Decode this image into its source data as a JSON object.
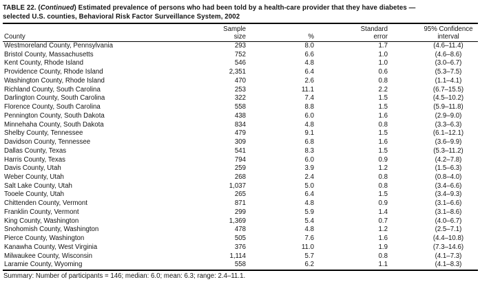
{
  "document": {
    "title": {
      "line1_prefix": "TABLE 22. (",
      "line1_italic": "Continued",
      "line1_suffix": ") Estimated prevalence of persons who had been told by a health-care provider that they have diabetes —",
      "line2": "selected U.S. counties, Behavioral Risk Factor Surveillance System, 2002"
    },
    "summary": "Summary: Number of participants = 146; median: 6.0; mean: 6.3; range: 2.4–11.1."
  },
  "table": {
    "columns": {
      "county": "County",
      "sample": "Sample\nsize",
      "pct": "%",
      "se": "Standard\nerror",
      "ci": "95% Confidence\ninterval"
    },
    "rows": [
      {
        "county": "Westmoreland County, Pennsylvania",
        "sample": "293",
        "pct": "8.0",
        "se": "1.7",
        "ci": "(4.6–11.4)"
      },
      {
        "county": "Bristol County, Massachusetts",
        "sample": "752",
        "pct": "6.6",
        "se": "1.0",
        "ci": "(4.6–8.6)"
      },
      {
        "county": "Kent County, Rhode Island",
        "sample": "546",
        "pct": "4.8",
        "se": "1.0",
        "ci": "(3.0–6.7)"
      },
      {
        "county": "Providence County, Rhode Island",
        "sample": "2,351",
        "pct": "6.4",
        "se": "0.6",
        "ci": "(5.3–7.5)"
      },
      {
        "county": "Washington County, Rhode Island",
        "sample": "470",
        "pct": "2.6",
        "se": "0.8",
        "ci": "(1.1–4.1)"
      },
      {
        "county": "Richland County, South Carolina",
        "sample": "253",
        "pct": "11.1",
        "se": "2.2",
        "ci": "(6.7–15.5)"
      },
      {
        "county": "Darlington County, South Carolina",
        "sample": "322",
        "pct": "7.4",
        "se": "1.5",
        "ci": "(4.5–10.2)"
      },
      {
        "county": "Florence County, South Carolina",
        "sample": "558",
        "pct": "8.8",
        "se": "1.5",
        "ci": "(5.9–11.8)"
      },
      {
        "county": "Pennington County, South Dakota",
        "sample": "438",
        "pct": "6.0",
        "se": "1.6",
        "ci": "(2.9–9.0)"
      },
      {
        "county": "Minnehaha County, South Dakota",
        "sample": "834",
        "pct": "4.8",
        "se": "0.8",
        "ci": "(3.3–6.3)"
      },
      {
        "county": "Shelby County, Tennessee",
        "sample": "479",
        "pct": "9.1",
        "se": "1.5",
        "ci": "(6.1–12.1)"
      },
      {
        "county": "Davidson County, Tennessee",
        "sample": "309",
        "pct": "6.8",
        "se": "1.6",
        "ci": "(3.6–9.9)"
      },
      {
        "county": "Dallas County, Texas",
        "sample": "541",
        "pct": "8.3",
        "se": "1.5",
        "ci": "(5.3–11.2)"
      },
      {
        "county": "Harris County, Texas",
        "sample": "794",
        "pct": "6.0",
        "se": "0.9",
        "ci": "(4.2–7.8)"
      },
      {
        "county": "Davis County, Utah",
        "sample": "259",
        "pct": "3.9",
        "se": "1.2",
        "ci": "(1.5–6.3)"
      },
      {
        "county": "Weber County, Utah",
        "sample": "268",
        "pct": "2.4",
        "se": "0.8",
        "ci": "(0.8–4.0)"
      },
      {
        "county": "Salt Lake County, Utah",
        "sample": "1,037",
        "pct": "5.0",
        "se": "0.8",
        "ci": "(3.4–6.6)"
      },
      {
        "county": "Tooele County, Utah",
        "sample": "265",
        "pct": "6.4",
        "se": "1.5",
        "ci": "(3.4–9.3)"
      },
      {
        "county": "Chittenden County, Vermont",
        "sample": "871",
        "pct": "4.8",
        "se": "0.9",
        "ci": "(3.1–6.6)"
      },
      {
        "county": "Franklin County, Vermont",
        "sample": "299",
        "pct": "5.9",
        "se": "1.4",
        "ci": "(3.1–8.6)"
      },
      {
        "county": "King County, Washington",
        "sample": "1,369",
        "pct": "5.4",
        "se": "0.7",
        "ci": "(4.0–6.7)"
      },
      {
        "county": "Snohomish County, Washington",
        "sample": "478",
        "pct": "4.8",
        "se": "1.2",
        "ci": "(2.5–7.1)"
      },
      {
        "county": "Pierce County, Washington",
        "sample": "505",
        "pct": "7.6",
        "se": "1.6",
        "ci": "(4.4–10.8)"
      },
      {
        "county": "Kanawha County, West Virginia",
        "sample": "376",
        "pct": "11.0",
        "se": "1.9",
        "ci": "(7.3–14.6)"
      },
      {
        "county": "Milwaukee County, Wisconsin",
        "sample": "1,114",
        "pct": "5.7",
        "se": "0.8",
        "ci": "(4.1–7.3)"
      },
      {
        "county": "Laramie County, Wyoming",
        "sample": "558",
        "pct": "6.2",
        "se": "1.1",
        "ci": "(4.1–8.3)"
      }
    ]
  },
  "colors": {
    "background": "#ffffff",
    "text": "#121212",
    "rule": "#000000"
  }
}
